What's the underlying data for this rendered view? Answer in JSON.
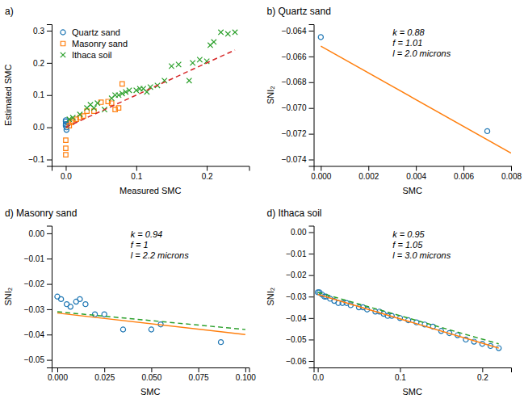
{
  "chart_data": [
    {
      "type": "scatter",
      "title": "a)",
      "xlabel": "Measured SMC",
      "ylabel": "Estimated SMC",
      "xlim": [
        -0.02,
        0.26
      ],
      "ylim": [
        -0.12,
        0.32
      ],
      "xticks": [
        {
          "value": 0.0,
          "label": "0.0"
        },
        {
          "value": 0.1,
          "label": "0.1"
        },
        {
          "value": 0.2,
          "label": "0.2"
        }
      ],
      "yticks": [
        {
          "value": -0.1,
          "label": "−0.1"
        },
        {
          "value": 0.0,
          "label": "0.0"
        },
        {
          "value": 0.1,
          "label": "0.1"
        },
        {
          "value": 0.2,
          "label": "0.2"
        },
        {
          "value": 0.3,
          "label": "0.3"
        }
      ],
      "grid": false,
      "legend": "upper left",
      "series": [
        {
          "name": "Quartz sand",
          "type": "scatter",
          "marker": "circle",
          "x": [
            0.0,
            0.0,
            0.0,
            0.0,
            0.001,
            0.001
          ],
          "values": [
            0.005,
            0.01,
            0.018,
            0.022,
            0.0,
            -0.008
          ]
        },
        {
          "name": "Masonry sand",
          "type": "scatter",
          "marker": "square",
          "x": [
            0.0,
            0.0,
            0.0,
            0.005,
            0.008,
            0.01,
            0.015,
            0.02,
            0.025,
            0.03,
            0.04,
            0.05,
            0.06,
            0.065,
            0.07,
            0.075,
            0.08
          ],
          "values": [
            -0.085,
            -0.065,
            -0.04,
            0.005,
            0.015,
            0.02,
            0.025,
            0.03,
            0.035,
            0.05,
            0.05,
            0.078,
            0.08,
            0.075,
            0.055,
            0.06,
            0.135
          ]
        },
        {
          "name": "Ithaca soil",
          "type": "scatter",
          "marker": "x",
          "x": [
            0.005,
            0.01,
            0.02,
            0.03,
            0.035,
            0.04,
            0.045,
            0.055,
            0.065,
            0.07,
            0.075,
            0.08,
            0.085,
            0.09,
            0.1,
            0.105,
            0.11,
            0.115,
            0.12,
            0.13,
            0.14,
            0.15,
            0.16,
            0.175,
            0.18,
            0.19,
            0.2,
            0.205,
            0.21,
            0.22,
            0.23,
            0.24
          ],
          "values": [
            0.025,
            0.03,
            0.04,
            0.06,
            0.07,
            0.06,
            0.075,
            0.055,
            0.09,
            0.1,
            0.1,
            0.105,
            0.11,
            0.115,
            0.115,
            0.12,
            0.12,
            0.11,
            0.125,
            0.13,
            0.145,
            0.19,
            0.195,
            0.145,
            0.2,
            0.21,
            0.205,
            0.255,
            0.265,
            0.295,
            0.29,
            0.295
          ]
        },
        {
          "type": "line",
          "line_style": "dashed",
          "x": [
            0.0,
            0.24
          ],
          "values": [
            0.0,
            0.24
          ]
        }
      ]
    },
    {
      "type": "scatter",
      "title": "b) Quartz sand",
      "xlabel": "SMC",
      "ylabel": "SNI₂",
      "xlim": [
        -0.0003,
        0.008
      ],
      "ylim": [
        -0.0745,
        -0.0635
      ],
      "xticks": [
        {
          "value": 0.0,
          "label": "0.000"
        },
        {
          "value": 0.002,
          "label": "0.002"
        },
        {
          "value": 0.004,
          "label": "0.004"
        },
        {
          "value": 0.006,
          "label": "0.006"
        },
        {
          "value": 0.008,
          "label": "0.008"
        }
      ],
      "yticks": [
        {
          "value": -0.074,
          "label": "−0.074"
        },
        {
          "value": -0.072,
          "label": "−0.072"
        },
        {
          "value": -0.07,
          "label": "−0.070"
        },
        {
          "value": -0.068,
          "label": "−0.068"
        },
        {
          "value": -0.066,
          "label": "−0.066"
        },
        {
          "value": -0.064,
          "label": "−0.064"
        }
      ],
      "grid": false,
      "annotations": [
        "k = 0.88\nf = 1.01\nl = 2.0 microns"
      ],
      "series": [
        {
          "type": "scatter",
          "marker": "circle",
          "x": [
            0.0,
            0.007
          ],
          "values": [
            -0.0645,
            -0.0718
          ]
        },
        {
          "type": "line",
          "line_style": "solid",
          "x": [
            0.0,
            0.008
          ],
          "values": [
            -0.0652,
            -0.0735
          ]
        }
      ]
    },
    {
      "type": "scatter",
      "title": "d) Masonry sand",
      "xlabel": "SMC",
      "ylabel": "SNI₂",
      "xlim": [
        -0.003,
        0.102
      ],
      "ylim": [
        -0.053,
        0.003
      ],
      "xticks": [
        {
          "value": 0.0,
          "label": "0.000"
        },
        {
          "value": 0.025,
          "label": "0.025"
        },
        {
          "value": 0.05,
          "label": "0.050"
        },
        {
          "value": 0.075,
          "label": "0.075"
        },
        {
          "value": 0.1,
          "label": "0.100"
        }
      ],
      "yticks": [
        {
          "value": 0.0,
          "label": "0.00"
        },
        {
          "value": -0.01,
          "label": "−0.01"
        },
        {
          "value": -0.02,
          "label": "−0.02"
        },
        {
          "value": -0.03,
          "label": "−0.03"
        },
        {
          "value": -0.04,
          "label": "−0.04"
        },
        {
          "value": -0.05,
          "label": "−0.05"
        }
      ],
      "grid": false,
      "annotations": [
        "k = 0.94\nf = 1\nl = 2.2 microns"
      ],
      "series": [
        {
          "type": "scatter",
          "marker": "circle",
          "x": [
            0.0,
            0.002,
            0.005,
            0.007,
            0.01,
            0.012,
            0.015,
            0.02,
            0.025,
            0.035,
            0.05,
            0.055,
            0.087
          ],
          "values": [
            -0.025,
            -0.026,
            -0.028,
            -0.029,
            -0.027,
            -0.026,
            -0.028,
            -0.032,
            -0.032,
            -0.038,
            -0.038,
            -0.036,
            -0.043
          ]
        },
        {
          "type": "line",
          "line_style": "solid",
          "x": [
            0.0,
            0.1
          ],
          "values": [
            -0.0315,
            -0.04
          ]
        },
        {
          "type": "line",
          "line_style": "dashed",
          "x": [
            0.0,
            0.1
          ],
          "values": [
            -0.031,
            -0.038
          ]
        }
      ]
    },
    {
      "type": "scatter",
      "title": "d) Ithaca soil",
      "xlabel": "SMC",
      "ylabel": "SNI₂",
      "xlim": [
        -0.005,
        0.235
      ],
      "ylim": [
        -0.063,
        0.003
      ],
      "xticks": [
        {
          "value": 0.0,
          "label": "0.0"
        },
        {
          "value": 0.1,
          "label": "0.1"
        },
        {
          "value": 0.2,
          "label": "0.2"
        }
      ],
      "yticks": [
        {
          "value": 0.0,
          "label": "0.00"
        },
        {
          "value": -0.01,
          "label": "−0.01"
        },
        {
          "value": -0.02,
          "label": "−0.02"
        },
        {
          "value": -0.03,
          "label": "−0.03"
        },
        {
          "value": -0.04,
          "label": "−0.04"
        },
        {
          "value": -0.05,
          "label": "−0.05"
        },
        {
          "value": -0.06,
          "label": "−0.06"
        }
      ],
      "grid": false,
      "annotations": [
        "k = 0.95\nf = 1.05\nl = 3.0 microns"
      ],
      "series": [
        {
          "type": "scatter",
          "marker": "circle",
          "x": [
            0.0,
            0.002,
            0.005,
            0.008,
            0.01,
            0.015,
            0.02,
            0.025,
            0.03,
            0.035,
            0.04,
            0.05,
            0.055,
            0.06,
            0.07,
            0.075,
            0.08,
            0.085,
            0.09,
            0.1,
            0.11,
            0.12,
            0.13,
            0.14,
            0.15,
            0.16,
            0.17,
            0.18,
            0.19,
            0.2,
            0.21,
            0.22
          ],
          "values": [
            -0.028,
            -0.028,
            -0.029,
            -0.03,
            -0.03,
            -0.031,
            -0.032,
            -0.033,
            -0.033,
            -0.033,
            -0.034,
            -0.035,
            -0.035,
            -0.036,
            -0.037,
            -0.037,
            -0.038,
            -0.039,
            -0.039,
            -0.04,
            -0.041,
            -0.042,
            -0.043,
            -0.044,
            -0.046,
            -0.047,
            -0.048,
            -0.05,
            -0.051,
            -0.052,
            -0.053,
            -0.054
          ]
        },
        {
          "type": "line",
          "line_style": "solid",
          "x": [
            0.0,
            0.22
          ],
          "values": [
            -0.029,
            -0.054
          ]
        },
        {
          "type": "line",
          "line_style": "dashed",
          "x": [
            0.0,
            0.22
          ],
          "values": [
            -0.028,
            -0.052
          ]
        }
      ]
    }
  ]
}
